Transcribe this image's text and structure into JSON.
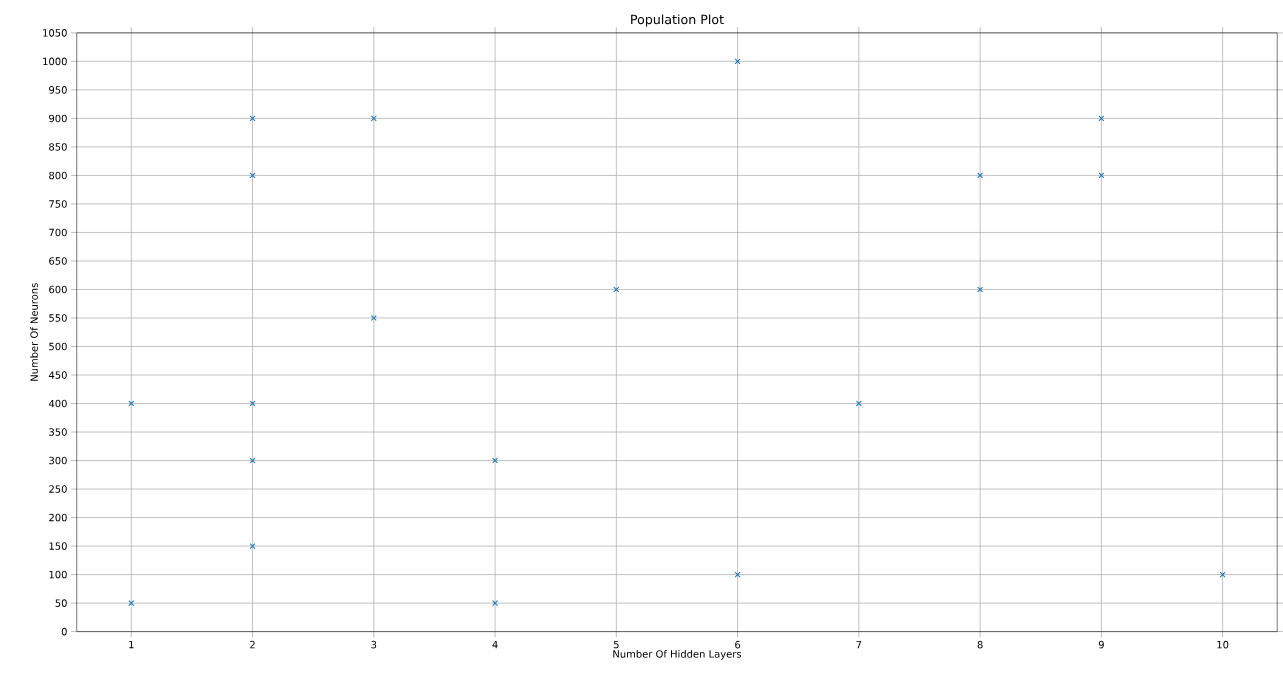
{
  "chart_data": {
    "type": "scatter",
    "title": "Population Plot",
    "xlabel": "Number Of Hidden Layers",
    "ylabel": "Number Of Neurons",
    "x": [
      1,
      1,
      2,
      2,
      2,
      2,
      2,
      3,
      3,
      4,
      4,
      5,
      6,
      6,
      7,
      8,
      8,
      9,
      9,
      10
    ],
    "values": [
      400,
      50,
      900,
      800,
      400,
      300,
      150,
      900,
      550,
      300,
      50,
      600,
      1000,
      100,
      400,
      800,
      600,
      900,
      800,
      100
    ],
    "color": "#1f77b4",
    "marker": "cross",
    "grid": true,
    "xlim": [
      0.55,
      10.45
    ],
    "ylim": [
      0,
      1050
    ],
    "xticks": [
      1,
      2,
      3,
      4,
      5,
      6,
      7,
      8,
      9,
      10
    ],
    "yticks": [
      0,
      50,
      100,
      150,
      200,
      250,
      300,
      350,
      400,
      450,
      500,
      550,
      600,
      650,
      700,
      750,
      800,
      850,
      900,
      950,
      1000,
      1050
    ]
  }
}
